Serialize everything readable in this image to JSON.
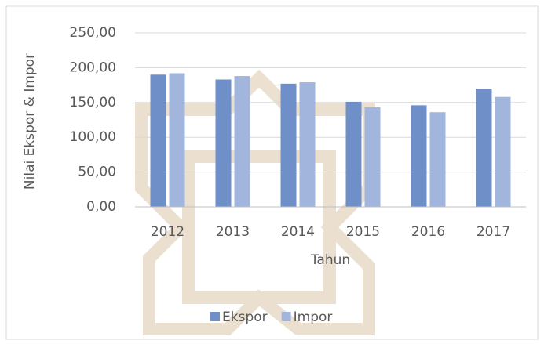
{
  "chart_data": {
    "type": "bar",
    "x_label": "Tahun",
    "y_label": "Nilai Ekspor & Impor",
    "categories": [
      "2012",
      "2013",
      "2014",
      "2015",
      "2016",
      "2017"
    ],
    "series": [
      {
        "name": "Ekspor",
        "color": "#6f8fc9",
        "values": [
          190,
          183,
          177,
          151,
          146,
          170
        ]
      },
      {
        "name": "Impor",
        "color": "#a2b5dd",
        "values": [
          192,
          188,
          179,
          143,
          136,
          158
        ]
      }
    ],
    "ylim": [
      0,
      250
    ],
    "yticks": [
      {
        "value": 0,
        "label": "0,00"
      },
      {
        "value": 50,
        "label": "50,00"
      },
      {
        "value": 100,
        "label": "100,00"
      },
      {
        "value": 150,
        "label": "150,00"
      },
      {
        "value": 200,
        "label": "200,00"
      },
      {
        "value": 250,
        "label": "250,00"
      }
    ],
    "grid": true,
    "legend": "bottom"
  }
}
